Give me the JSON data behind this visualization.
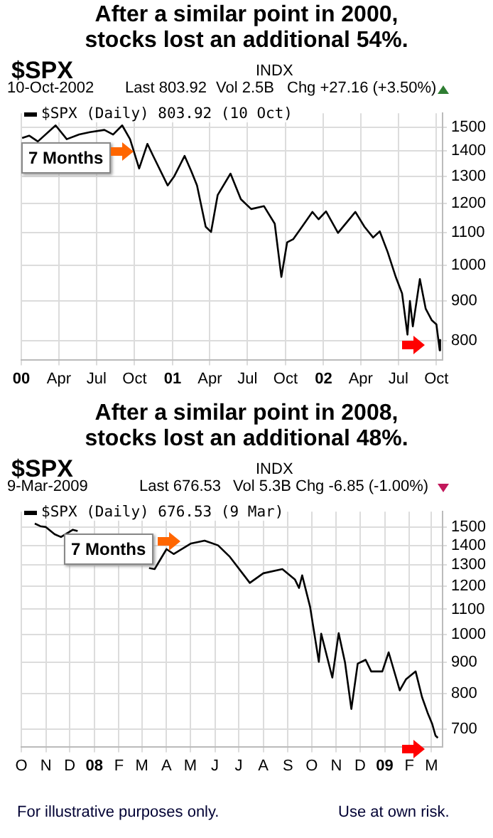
{
  "chart_data": [
    {
      "type": "line",
      "title": "After a similar point in 2000, stocks lost an additional 54%.",
      "annotations": [
        "$SPX",
        "INDX",
        "10-Oct-2002",
        "Last 803.92",
        "Vol 2.5B",
        "Chg +27.16 (+3.50%)",
        "7 Months"
      ],
      "x": [
        "2000-01-03",
        "2000-01-20",
        "2000-02-10",
        "2000-03-24",
        "2000-04-20",
        "2000-05-20",
        "2000-06-15",
        "2000-07-20",
        "2000-08-10",
        "2000-09-01",
        "2000-09-20",
        "2000-10-12",
        "2000-11-01",
        "2000-11-15",
        "2000-12-20",
        "2001-01-05",
        "2001-01-30",
        "2001-02-15",
        "2001-03-01",
        "2001-03-22",
        "2001-04-04",
        "2001-04-20",
        "2001-05-21",
        "2001-06-15",
        "2001-07-10",
        "2001-08-10",
        "2001-09-05",
        "2001-09-21",
        "2001-10-05",
        "2001-10-20",
        "2001-11-10",
        "2001-12-05",
        "2001-12-20",
        "2002-01-07",
        "2002-02-05",
        "2002-03-19",
        "2002-04-10",
        "2002-05-01",
        "2002-05-17",
        "2002-06-05",
        "2002-06-25",
        "2002-07-10",
        "2002-07-23",
        "2002-07-29",
        "2002-08-05",
        "2002-08-22",
        "2002-09-05",
        "2002-09-20",
        "2002-10-01",
        "2002-10-09",
        "2002-10-10"
      ],
      "series": [
        {
          "name": "$SPX (Daily) 803.92 (10 Oct)",
          "color": "#000000",
          "values": [
            1455,
            1465,
            1440,
            1510,
            1450,
            1470,
            1480,
            1490,
            1470,
            1510,
            1450,
            1330,
            1430,
            1380,
            1265,
            1300,
            1380,
            1320,
            1265,
            1120,
            1103,
            1230,
            1310,
            1215,
            1180,
            1190,
            1130,
            966,
            1070,
            1080,
            1120,
            1170,
            1145,
            1172,
            1100,
            1170,
            1120,
            1085,
            1105,
            1040,
            965,
            920,
            815,
            900,
            835,
            960,
            880,
            850,
            840,
            778,
            804
          ]
        }
      ],
      "xlim": [
        "2000-01-01",
        "2002-10-16"
      ],
      "xticks": [
        {
          "value": "2000-01-01",
          "label": "00"
        },
        {
          "value": "2000-04-01",
          "label": "Apr"
        },
        {
          "value": "2000-07-01",
          "label": "Jul"
        },
        {
          "value": "2000-10-01",
          "label": "Oct"
        },
        {
          "value": "2001-01-01",
          "label": "01"
        },
        {
          "value": "2001-04-01",
          "label": "Apr"
        },
        {
          "value": "2001-07-01",
          "label": "Jul"
        },
        {
          "value": "2001-10-01",
          "label": "Oct"
        },
        {
          "value": "2002-01-01",
          "label": "02"
        },
        {
          "value": "2002-04-01",
          "label": "Apr"
        },
        {
          "value": "2002-07-01",
          "label": "Jul"
        },
        {
          "value": "2002-10-01",
          "label": "Oct"
        }
      ],
      "ylim": [
        757,
        1565
      ],
      "yticks": [
        800,
        900,
        1000,
        1100,
        1200,
        1300,
        1400,
        1500
      ],
      "log": "y",
      "grid": true,
      "legend": "top left",
      "marker": "none"
    },
    {
      "type": "line",
      "title": "After a similar point in 2008, stocks lost an additional 48%.",
      "annotations": [
        "$SPX",
        "INDX",
        "9-Mar-2009",
        "Last 676.53",
        "Vol 5.3B",
        "Chg -6.85 (-1.00%)",
        "7 Months",
        "For illustrative purposes only.",
        "Use at own risk."
      ],
      "x": [
        "2007-10-18",
        "2007-10-25",
        "2007-11-01",
        "2007-11-12",
        "2007-11-20",
        "2007-12-05",
        "2007-12-11",
        "2007-12-20",
        "2008-03-10",
        "2008-03-17",
        "2008-04-01",
        "2008-04-10",
        "2008-05-02",
        "2008-05-19",
        "2008-06-05",
        "2008-06-20",
        "2008-07-15",
        "2008-08-01",
        "2008-08-25",
        "2008-09-10",
        "2008-09-15",
        "2008-09-19",
        "2008-09-29",
        "2008-10-10",
        "2008-10-13",
        "2008-10-27",
        "2008-11-04",
        "2008-11-12",
        "2008-11-20",
        "2008-11-28",
        "2008-12-08",
        "2008-12-15",
        "2008-12-29",
        "2009-01-06",
        "2009-01-20",
        "2009-01-28",
        "2009-02-09",
        "2009-02-17",
        "2009-02-24",
        "2009-03-02",
        "2009-03-06",
        "2009-03-09"
      ],
      "series": [
        {
          "name": "$SPX (Daily) 676.53 (9 Mar)",
          "color": "#000000",
          "values": [
            1520,
            1505,
            1500,
            1460,
            1445,
            1485,
            1478,
            null,
            1285,
            1280,
            1380,
            1355,
            1410,
            1425,
            1400,
            1340,
            1215,
            1260,
            1280,
            1230,
            1192,
            1250,
            1110,
            902,
            1003,
            850,
            1005,
            900,
            755,
            896,
            909,
            870,
            870,
            935,
            810,
            845,
            870,
            790,
            745,
            713,
            683,
            677
          ]
        }
      ],
      "xlim": [
        "2007-10-01",
        "2009-03-15"
      ],
      "xticks": [
        {
          "value": "2007-10-01",
          "label": "O"
        },
        {
          "value": "2007-11-01",
          "label": "N"
        },
        {
          "value": "2007-12-01",
          "label": "D"
        },
        {
          "value": "2008-01-01",
          "label": "08"
        },
        {
          "value": "2008-02-01",
          "label": "F"
        },
        {
          "value": "2008-03-01",
          "label": "M"
        },
        {
          "value": "2008-04-01",
          "label": "A"
        },
        {
          "value": "2008-05-01",
          "label": "M"
        },
        {
          "value": "2008-06-01",
          "label": "J"
        },
        {
          "value": "2008-07-01",
          "label": "J"
        },
        {
          "value": "2008-08-01",
          "label": "A"
        },
        {
          "value": "2008-09-01",
          "label": "S"
        },
        {
          "value": "2008-10-01",
          "label": "O"
        },
        {
          "value": "2008-11-01",
          "label": "N"
        },
        {
          "value": "2008-12-01",
          "label": "D"
        },
        {
          "value": "2009-01-01",
          "label": "09"
        },
        {
          "value": "2009-02-01",
          "label": "F"
        },
        {
          "value": "2009-03-01",
          "label": "M"
        }
      ],
      "ylim": [
        655,
        1590
      ],
      "yticks": [
        700,
        800,
        900,
        1000,
        1100,
        1200,
        1300,
        1400,
        1500
      ],
      "log": "y",
      "grid": true,
      "legend": "top left",
      "marker": "none"
    }
  ]
}
